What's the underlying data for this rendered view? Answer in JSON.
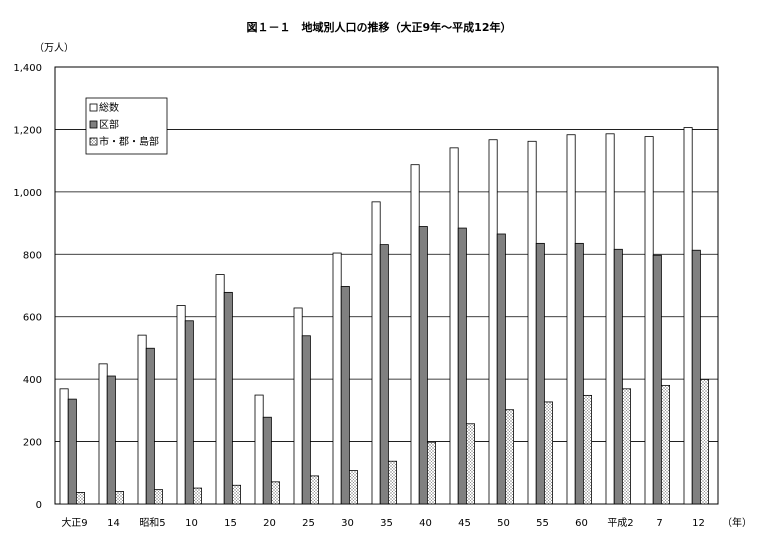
{
  "chart_data": {
    "type": "bar",
    "title": "図１－１　地域別人口の推移（大正9年～平成12年）",
    "ylabel": "（万人）",
    "xlabel": "（年）",
    "ylim": [
      0,
      1400
    ],
    "yticks": [
      0,
      200,
      400,
      600,
      800,
      1000,
      1200,
      1400
    ],
    "ytick_labels": [
      "0",
      "200",
      "400",
      "600",
      "800",
      "1,000",
      "1,200",
      "1,400"
    ],
    "categories": [
      "大正9",
      "14",
      "昭和5",
      "10",
      "15",
      "20",
      "25",
      "30",
      "35",
      "40",
      "45",
      "50",
      "55",
      "60",
      "平成2",
      "7",
      "12"
    ],
    "grid": true,
    "legend_position": "top-left",
    "series": [
      {
        "name": "総数",
        "fill": "white",
        "values": [
          369,
          449,
          541,
          636,
          735,
          349,
          628,
          804,
          968,
          1087,
          1141,
          1167,
          1162,
          1183,
          1186,
          1177,
          1206
        ]
      },
      {
        "name": "区部",
        "fill": "gray",
        "values": [
          336,
          410,
          499,
          587,
          678,
          278,
          539,
          697,
          831,
          889,
          884,
          865,
          835,
          835,
          816,
          797,
          813
        ]
      },
      {
        "name": "市・郡・島部",
        "fill": "dotted",
        "values": [
          37,
          40,
          46,
          51,
          60,
          71,
          90,
          107,
          137,
          198,
          257,
          302,
          327,
          348,
          369,
          380,
          399
        ]
      }
    ]
  }
}
